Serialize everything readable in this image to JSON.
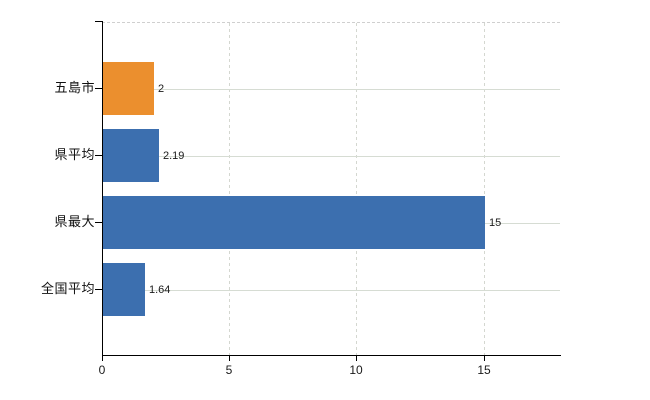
{
  "chart_data": {
    "type": "bar",
    "orientation": "horizontal",
    "title": "",
    "xlabel": "",
    "ylabel": "",
    "categories": [
      "五島市",
      "県平均",
      "県最大",
      "全国平均"
    ],
    "values": [
      2,
      2.19,
      15,
      1.64
    ],
    "value_labels": [
      "2",
      "2.19",
      "15",
      "1.64"
    ],
    "bar_colors": [
      "#EB8F2E",
      "#3C6FAF",
      "#3C6FAF",
      "#3C6FAF"
    ],
    "xlim": [
      0,
      18
    ],
    "x_ticks": [
      0,
      5,
      10,
      15
    ],
    "x_tick_labels": [
      "0",
      "5",
      "10",
      "15"
    ],
    "grid": "on",
    "legend": "none"
  },
  "colors": {
    "bar_orange": "#EB8F2E",
    "bar_blue": "#3C6FAF",
    "h_gridline": "#D6DCD3",
    "v_gridline": "#D4D7D0",
    "plot_top_border": "#CFCFCF",
    "axis": "#000000",
    "text": "#1A1A1A",
    "background": "#FFFFFF"
  }
}
